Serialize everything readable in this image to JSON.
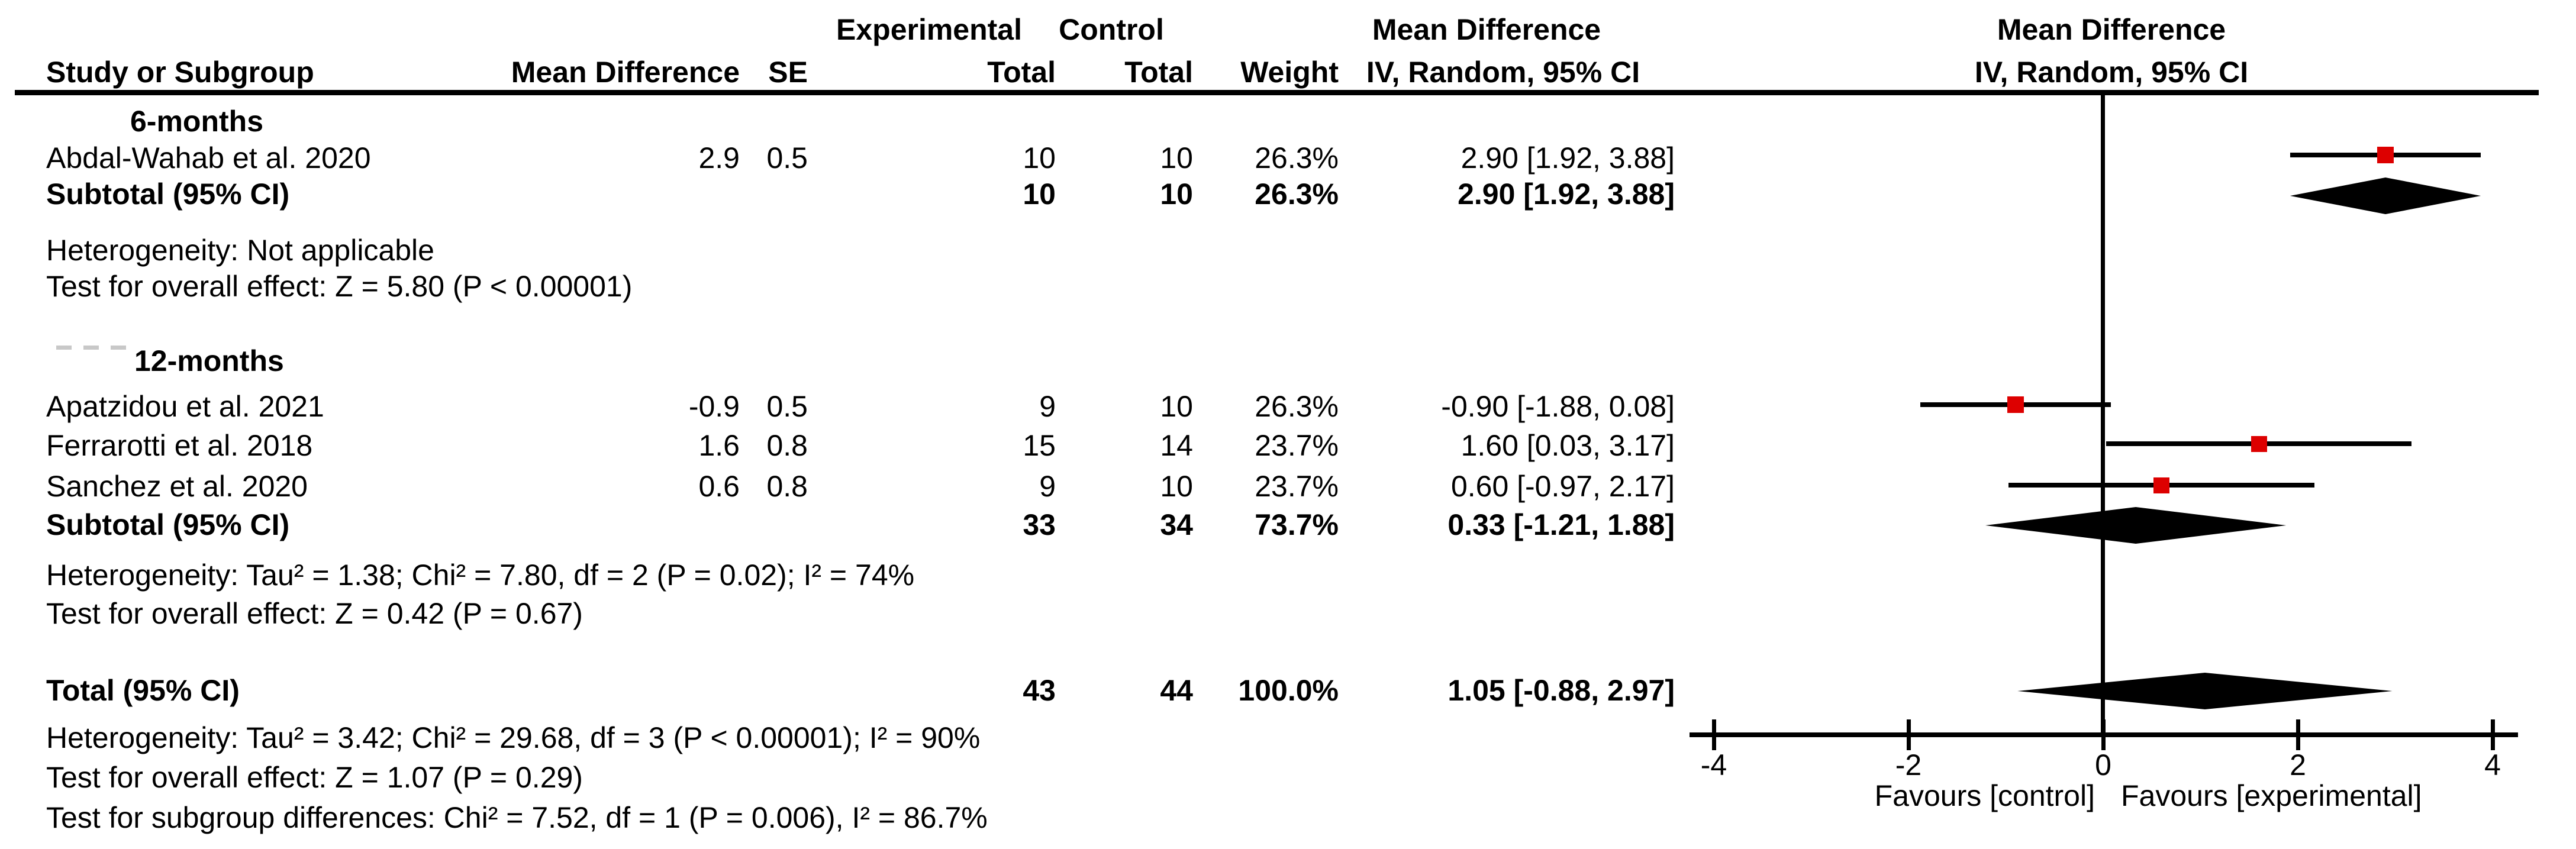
{
  "colors": {
    "marker": "#dd0000",
    "line": "#000000"
  },
  "header1": {
    "experimental": "Experimental",
    "control": "Control",
    "md_text_col": "Mean Difference",
    "md_plot_col": "Mean Difference"
  },
  "header2": {
    "study": "Study or Subgroup",
    "md": "Mean Difference",
    "se": "SE",
    "total_exp": "Total",
    "total_ctrl": "Total",
    "weight": "Weight",
    "ci_text_col": "IV, Random, 95% CI",
    "ci_plot_col": "IV, Random, 95% CI"
  },
  "groups": [
    {
      "label": "6-months",
      "studies": [
        {
          "name": "Abdal-Wahab et al. 2020",
          "md": "2.9",
          "se": "0.5",
          "total_exp": "10",
          "total_ctrl": "10",
          "weight": "26.3%",
          "ci": "2.90 [1.92, 3.88]"
        }
      ],
      "subtotal": {
        "label": "Subtotal (95% CI)",
        "total_exp": "10",
        "total_ctrl": "10",
        "weight": "26.3%",
        "ci": "2.90 [1.92, 3.88]"
      },
      "heterogeneity": "Heterogeneity: Not applicable",
      "overall_effect": "Test for overall effect: Z = 5.80 (P < 0.00001)"
    },
    {
      "label": "12-months",
      "studies": [
        {
          "name": "Apatzidou et al. 2021",
          "md": "-0.9",
          "se": "0.5",
          "total_exp": "9",
          "total_ctrl": "10",
          "weight": "26.3%",
          "ci": "-0.90 [-1.88, 0.08]"
        },
        {
          "name": "Ferrarotti et al. 2018",
          "md": "1.6",
          "se": "0.8",
          "total_exp": "15",
          "total_ctrl": "14",
          "weight": "23.7%",
          "ci": "1.60 [0.03, 3.17]"
        },
        {
          "name": "Sanchez et al. 2020",
          "md": "0.6",
          "se": "0.8",
          "total_exp": "9",
          "total_ctrl": "10",
          "weight": "23.7%",
          "ci": "0.60 [-0.97, 2.17]"
        }
      ],
      "subtotal": {
        "label": "Subtotal (95% CI)",
        "total_exp": "33",
        "total_ctrl": "34",
        "weight": "73.7%",
        "ci": "0.33 [-1.21, 1.88]"
      },
      "heterogeneity": "Heterogeneity: Tau² = 1.38; Chi² = 7.80, df = 2 (P = 0.02); I² = 74%",
      "overall_effect": "Test for overall effect: Z = 0.42 (P = 0.67)"
    }
  ],
  "total": {
    "label": "Total (95% CI)",
    "total_exp": "43",
    "total_ctrl": "44",
    "weight": "100.0%",
    "ci": "1.05 [-0.88, 2.97]"
  },
  "footer": {
    "heterogeneity": "Heterogeneity: Tau² = 3.42; Chi² = 29.68, df = 3 (P < 0.00001); I² = 90%",
    "overall_effect": "Test for overall effect: Z = 1.07 (P = 0.29)",
    "subgroup_differences": "Test for subgroup differences: Chi² = 7.52, df = 1 (P = 0.006), I² = 86.7%"
  },
  "chart_data": {
    "type": "forest",
    "effect_measure": "Mean Difference, IV, Random, 95% CI",
    "x_axis": {
      "min": -4,
      "max": 4,
      "ticks": [
        -4,
        -2,
        0,
        2,
        4
      ],
      "label_left": "Favours [control]",
      "label_right": "Favours [experimental]"
    },
    "rows": [
      {
        "kind": "study",
        "label": "Abdal-Wahab et al. 2020",
        "est": 2.9,
        "lo": 1.92,
        "hi": 3.88,
        "weight_pct": 26.3
      },
      {
        "kind": "diamond",
        "label": "Subtotal 6-months",
        "est": 2.9,
        "lo": 1.92,
        "hi": 3.88
      },
      {
        "kind": "study",
        "label": "Apatzidou et al. 2021",
        "est": -0.9,
        "lo": -1.88,
        "hi": 0.08,
        "weight_pct": 26.3
      },
      {
        "kind": "study",
        "label": "Ferrarotti et al. 2018",
        "est": 1.6,
        "lo": 0.03,
        "hi": 3.17,
        "weight_pct": 23.7
      },
      {
        "kind": "study",
        "label": "Sanchez et al. 2020",
        "est": 0.6,
        "lo": -0.97,
        "hi": 2.17,
        "weight_pct": 23.7
      },
      {
        "kind": "diamond",
        "label": "Subtotal 12-months",
        "est": 0.33,
        "lo": -1.21,
        "hi": 1.88
      },
      {
        "kind": "diamond",
        "label": "Total",
        "est": 1.05,
        "lo": -0.88,
        "hi": 2.97
      }
    ]
  }
}
